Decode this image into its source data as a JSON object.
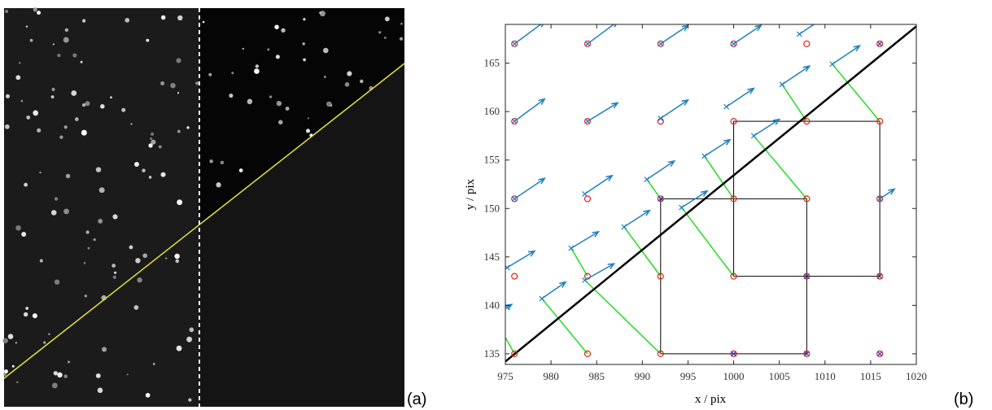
{
  "panel_a": {
    "label": "(a)"
  },
  "chart_data": {
    "type": "vector_field",
    "label": "(b)",
    "x_label": "x / pix",
    "y_label": "y / pix",
    "xlim": [
      975,
      1020
    ],
    "ylim": [
      133.9,
      169
    ],
    "xticks": [
      975,
      980,
      985,
      990,
      995,
      1000,
      1005,
      1010,
      1015,
      1020
    ],
    "yticks": [
      135,
      140,
      145,
      150,
      155,
      160,
      165
    ],
    "circles": {
      "color": "#e8201c",
      "x": [
        976,
        984,
        992,
        1000,
        1008,
        1016,
        976,
        984,
        992,
        1000,
        1008,
        1016,
        976,
        984,
        992,
        1000,
        1008,
        1016,
        976,
        984,
        992,
        1000,
        1008,
        1016,
        976,
        984,
        992,
        1000,
        1008,
        1016
      ],
      "y": [
        135,
        135,
        135,
        135,
        135,
        135,
        143,
        143,
        143,
        143,
        143,
        143,
        151,
        151,
        151,
        151,
        151,
        151,
        159,
        159,
        159,
        159,
        159,
        159,
        167,
        167,
        167,
        167,
        167,
        167
      ]
    },
    "crosses": {
      "color": "#2a3fb0",
      "x": [
        1000,
        1008,
        1016,
        1008,
        1016,
        992,
        1016
      ],
      "y": [
        135,
        135,
        135,
        143,
        143,
        151,
        167
      ]
    },
    "vectors": {
      "color": "#1f7fc0",
      "x": [
        976,
        984,
        992,
        1000,
        1007.2,
        976,
        984,
        992,
        999.2,
        1005.3,
        1010.8,
        976,
        983.7,
        990.5,
        996.8,
        1002.2,
        975.2,
        982.2,
        988,
        994.3,
        975.2,
        979,
        983.7,
        1016
      ],
      "y": [
        167,
        167,
        167,
        167,
        168,
        159,
        159,
        159.3,
        160.5,
        162.8,
        164.9,
        151,
        151.5,
        153,
        155.4,
        157.5,
        143.9,
        145.9,
        148.1,
        150.1,
        139.8,
        140.7,
        142.6,
        151
      ],
      "u": [
        3.3,
        3.3,
        3,
        3,
        3,
        3.3,
        3.3,
        3,
        3,
        3,
        3,
        3.3,
        3,
        3,
        2.8,
        2.8,
        3,
        3,
        2.8,
        2.8,
        0.5,
        2.6,
        3.2,
        1.6
      ],
      "v": [
        2.3,
        2.3,
        1.9,
        1.9,
        1.9,
        2.3,
        1.9,
        1.9,
        1.9,
        1.9,
        1.9,
        2.1,
        1.9,
        1.9,
        1.7,
        1.7,
        1.7,
        1.7,
        1.7,
        1.7,
        0.3,
        1.7,
        1.7,
        1
      ]
    },
    "links": {
      "color": "#22dd22",
      "x1": [
        984,
        992,
        984,
        992,
        1000,
        992,
        1000,
        1008,
        1008,
        1016,
        976
      ],
      "y1": [
        135,
        135,
        143,
        143,
        143,
        151,
        151,
        151,
        159,
        159,
        135
      ],
      "x2": [
        979,
        983.7,
        982.2,
        988,
        994.3,
        990.5,
        996.8,
        1002.2,
        1005.3,
        1010.8,
        975
      ],
      "y2": [
        140.7,
        142.6,
        145.9,
        148.1,
        150.1,
        153,
        155.4,
        157.5,
        162.8,
        164.9,
        136.7
      ]
    },
    "line": {
      "color": "#000000",
      "x": [
        975,
        1020
      ],
      "y": [
        134.2,
        168.8
      ]
    },
    "boxes": {
      "color": "#000000",
      "x0": [
        992,
        1000
      ],
      "y0": [
        135,
        143
      ],
      "x1": [
        1008,
        1016
      ],
      "y1": [
        151,
        159
      ]
    }
  }
}
